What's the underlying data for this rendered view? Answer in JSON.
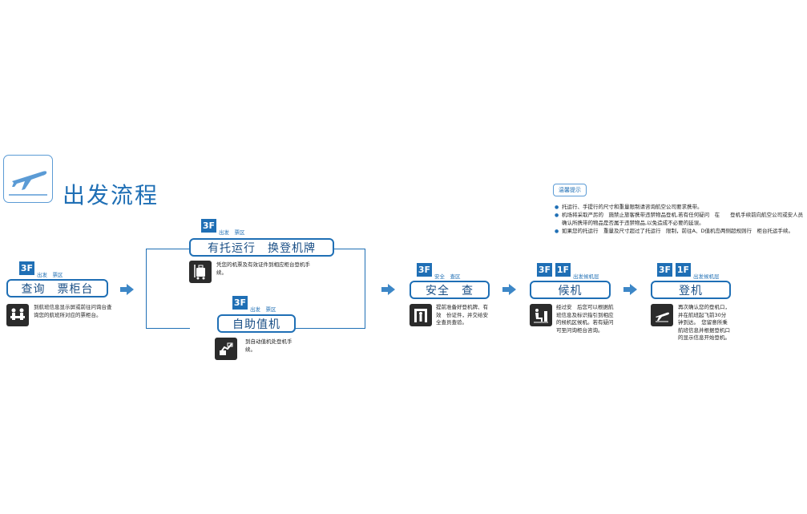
{
  "title": "出发流程",
  "steps": {
    "inquiry": {
      "floor": "3F",
      "area": "出发　票区",
      "label": "查询　票柜台",
      "desc": "到航班信息显示屏或前往问询台查询您的航班所对应的票柜台。"
    },
    "checked": {
      "floor": "3F",
      "area": "出发　票区",
      "label": "有托运行　换登机牌",
      "desc": "凭您的机票及有效证件到相应柜台登机手续。"
    },
    "self": {
      "floor": "3F",
      "area": "出发　票区",
      "label": "自助值机",
      "desc": "到自动值机处登机手续。"
    },
    "security": {
      "floor": "3F",
      "area": "安全　查区",
      "label": "安全　查",
      "desc": "提前准备好登机牌、有效　份证件，并交给安全查员查验。"
    },
    "waiting": {
      "floor": "3F",
      "floor2": "1F",
      "area": "出发候机层",
      "label": "候机",
      "desc": "经过安　后您可以根据航班信息及标识指引到相应的候机区候机。若有疑问可至问询柜台咨询。"
    },
    "boarding": {
      "floor": "3F",
      "floor2": "1F",
      "area": "出发候机层",
      "label": "登机",
      "desc": "再次确认您的登机口，并在航班起飞前30分钟到达。　您留意所乘航班信息并根据登机口的显示信息开始登机。"
    }
  },
  "tips": {
    "badge": "温馨提示",
    "items": [
      "托运行、手提行的尺寸和重量限制请咨询航空公司要求携带。",
      "机场将采取严厉的　施禁止旅客携带违禁物品登机,若有任何疑问　在　　登机手续前向航空公司或安人员确认所携带的物品是否属于违禁物品,以免造成不必要的延误。",
      "如果您的托运行　重量及尺寸超过了托运行　限制，前往A、D值机岛两侧超规则行　柜台托运手续。"
    ]
  },
  "colors": {
    "accent": "#1f6fb5",
    "icon_bg": "#2b2b2b"
  },
  "icons": {
    "title": "departure-plane-icon",
    "inquiry": "information-desk-icon",
    "checked": "luggage-cart-icon",
    "self": "self-checkin-kiosk-icon",
    "security": "security-gate-icon",
    "waiting": "waiting-lounge-icon",
    "boarding": "boarding-plane-icon"
  }
}
